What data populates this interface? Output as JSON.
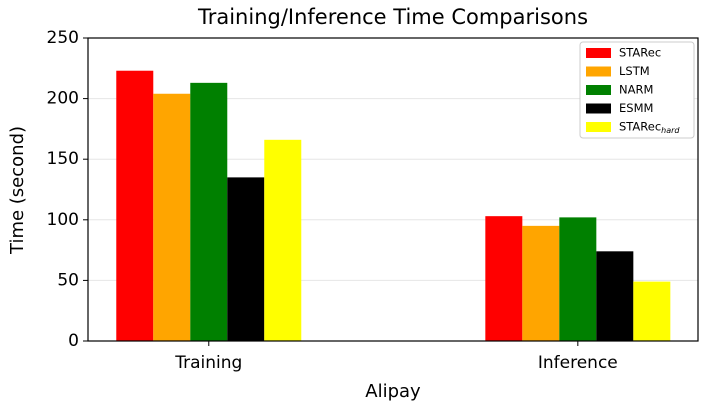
{
  "chart_data": {
    "type": "bar",
    "title": "Training/Inference Time Comparisons",
    "x_label": "Alipay",
    "y_label": "Time (second)",
    "categories": [
      "Training",
      "Inference"
    ],
    "series": [
      {
        "name": "STARec",
        "color": "#ff0000",
        "values": [
          223,
          103
        ]
      },
      {
        "name": "LSTM",
        "color": "#ffa500",
        "values": [
          204,
          95
        ]
      },
      {
        "name": "NARM",
        "color": "#008000",
        "values": [
          213,
          102
        ]
      },
      {
        "name": "ESMM",
        "color": "#000000",
        "values": [
          135,
          74
        ]
      },
      {
        "name": "STARec_hard",
        "color": "#ffff00",
        "values": [
          166,
          49
        ]
      }
    ],
    "ylim": [
      0,
      250
    ],
    "yticks": [
      0,
      50,
      100,
      150,
      200,
      250
    ],
    "grid": true,
    "legend": "upper right"
  }
}
